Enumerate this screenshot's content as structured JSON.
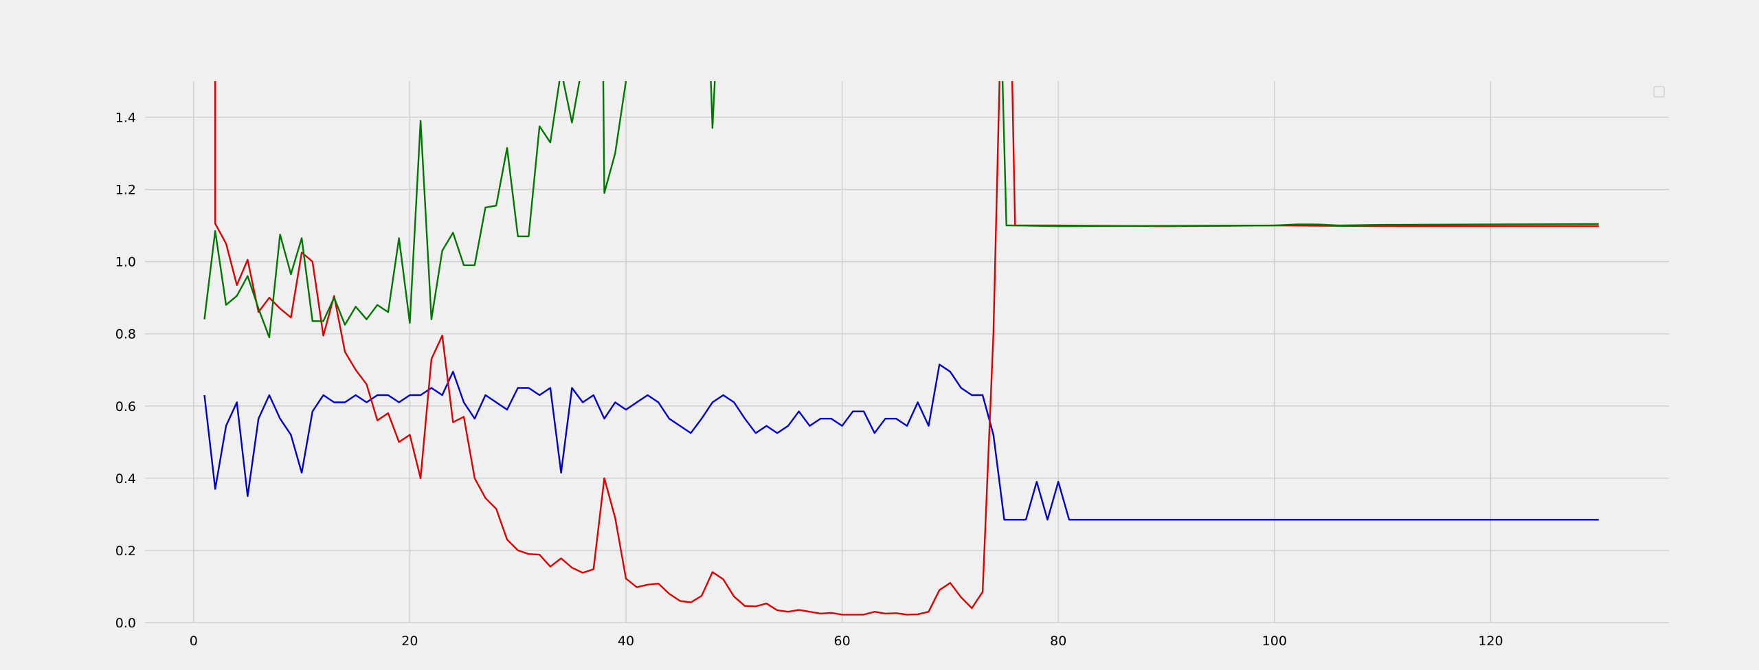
{
  "chart_data": {
    "type": "line",
    "title": "",
    "xlabel": "",
    "ylabel": "",
    "xlim": [
      -4.5,
      136.5
    ],
    "ylim": [
      0,
      1.5
    ],
    "xticks": [
      0,
      20,
      40,
      60,
      80,
      100,
      120
    ],
    "yticks": [
      0.0,
      0.2,
      0.4,
      0.6,
      0.8,
      1.0,
      1.2,
      1.4
    ],
    "ytick_labels": [
      "0.0",
      "0.2",
      "0.4",
      "0.6",
      "0.8",
      "1.0",
      "1.2",
      "1.4"
    ],
    "grid": true,
    "legend": "top-right",
    "series": [
      {
        "color": "#0000cc",
        "x": [
          1,
          2,
          3,
          4,
          5,
          6,
          7,
          8,
          9,
          10,
          11,
          12,
          13,
          14,
          15,
          16,
          17,
          18,
          19,
          20,
          21,
          22,
          23,
          24,
          25,
          26,
          27,
          28,
          29,
          30,
          31,
          32,
          33,
          34,
          35,
          36,
          37,
          38,
          39,
          40,
          41,
          42,
          43,
          44,
          45,
          46,
          47,
          48,
          49,
          50,
          51,
          52,
          53,
          54,
          55,
          56,
          57,
          58,
          59,
          60,
          61,
          62,
          63,
          64,
          65,
          66,
          67,
          68,
          69,
          70,
          71,
          72,
          73,
          74,
          75,
          76,
          77,
          78,
          79,
          80,
          81,
          130
        ],
        "y": [
          0.63,
          0.37,
          0.545,
          0.61,
          0.35,
          0.565,
          0.63,
          0.565,
          0.52,
          0.415,
          0.585,
          0.63,
          0.61,
          0.61,
          0.63,
          0.61,
          0.63,
          0.63,
          0.61,
          0.63,
          0.63,
          0.65,
          0.63,
          0.695,
          0.61,
          0.565,
          0.63,
          0.61,
          0.59,
          0.65,
          0.65,
          0.63,
          0.65,
          0.415,
          0.65,
          0.61,
          0.63,
          0.565,
          0.61,
          0.59,
          0.61,
          0.63,
          0.61,
          0.565,
          0.545,
          0.525,
          0.565,
          0.61,
          0.63,
          0.61,
          0.565,
          0.525,
          0.545,
          0.525,
          0.545,
          0.585,
          0.545,
          0.565,
          0.565,
          0.545,
          0.585,
          0.585,
          0.525,
          0.565,
          0.565,
          0.545,
          0.61,
          0.545,
          0.715,
          0.695,
          0.65,
          0.63,
          0.63,
          0.52,
          0.285,
          0.285,
          0.285,
          0.39,
          0.285,
          0.39,
          0.285,
          0.285
        ]
      },
      {
        "color": "#dd0000",
        "x": [
          2,
          2,
          3,
          4,
          5,
          6,
          7,
          8,
          9,
          10,
          11,
          12,
          13,
          14,
          15,
          16,
          17,
          18,
          19,
          20,
          21,
          22,
          23,
          24,
          25,
          26,
          27,
          28,
          29,
          30,
          31,
          32,
          33,
          34,
          35,
          36,
          37,
          38,
          39,
          40,
          41,
          42,
          43,
          44,
          45,
          46,
          47,
          48,
          49,
          50,
          51,
          52,
          53,
          54,
          55,
          56,
          57,
          58,
          59,
          60,
          61,
          62,
          63,
          64,
          65,
          66,
          67,
          68,
          69,
          70,
          71,
          72,
          73,
          74,
          74.6,
          75.2,
          75.7,
          76,
          77,
          80,
          90,
          100,
          110,
          120,
          130
        ],
        "y": [
          1.55,
          1.105,
          1.05,
          0.935,
          1.005,
          0.86,
          0.9,
          0.87,
          0.845,
          1.025,
          1.0,
          0.795,
          0.905,
          0.75,
          0.7,
          0.66,
          0.56,
          0.58,
          0.5,
          0.52,
          0.4,
          0.73,
          0.795,
          0.555,
          0.57,
          0.4,
          0.345,
          0.315,
          0.23,
          0.2,
          0.19,
          0.188,
          0.155,
          0.178,
          0.152,
          0.138,
          0.148,
          0.4,
          0.29,
          0.122,
          0.098,
          0.105,
          0.108,
          0.08,
          0.06,
          0.056,
          0.074,
          0.14,
          0.12,
          0.072,
          0.046,
          0.045,
          0.053,
          0.034,
          0.03,
          0.035,
          0.03,
          0.025,
          0.027,
          0.022,
          0.022,
          0.022,
          0.03,
          0.025,
          0.026,
          0.022,
          0.023,
          0.03,
          0.09,
          0.11,
          0.07,
          0.04,
          0.085,
          0.8,
          1.55,
          1.55,
          1.55,
          1.1,
          1.1,
          1.1,
          1.098,
          1.1,
          1.098,
          1.098,
          1.098
        ]
      },
      {
        "color": "#007700",
        "x": [
          1,
          2,
          3,
          4,
          5,
          6,
          7,
          8,
          9,
          10,
          11,
          12,
          13,
          14,
          15,
          16,
          17,
          18,
          19,
          20,
          21,
          22,
          23,
          24,
          25,
          26,
          27,
          28,
          29,
          30,
          31,
          32,
          33,
          34,
          35,
          36,
          37,
          37.9,
          38,
          39,
          40,
          40.2,
          47.8,
          48,
          48.3,
          74.8,
          75.2,
          75.8,
          76,
          80,
          100,
          102,
          104,
          106,
          110,
          130
        ],
        "y": [
          0.84,
          1.085,
          0.88,
          0.905,
          0.96,
          0.87,
          0.79,
          1.075,
          0.965,
          1.065,
          0.835,
          0.835,
          0.9,
          0.825,
          0.875,
          0.84,
          0.88,
          0.86,
          1.065,
          0.83,
          1.39,
          0.84,
          1.03,
          1.08,
          0.99,
          0.99,
          1.15,
          1.155,
          1.315,
          1.07,
          1.07,
          1.375,
          1.33,
          1.53,
          1.385,
          1.55,
          1.55,
          1.5,
          1.19,
          1.3,
          1.5,
          1.55,
          1.55,
          1.37,
          1.55,
          1.55,
          1.1,
          1.1,
          1.1,
          1.098,
          1.1,
          1.103,
          1.103,
          1.1,
          1.102,
          1.104
        ]
      }
    ]
  }
}
